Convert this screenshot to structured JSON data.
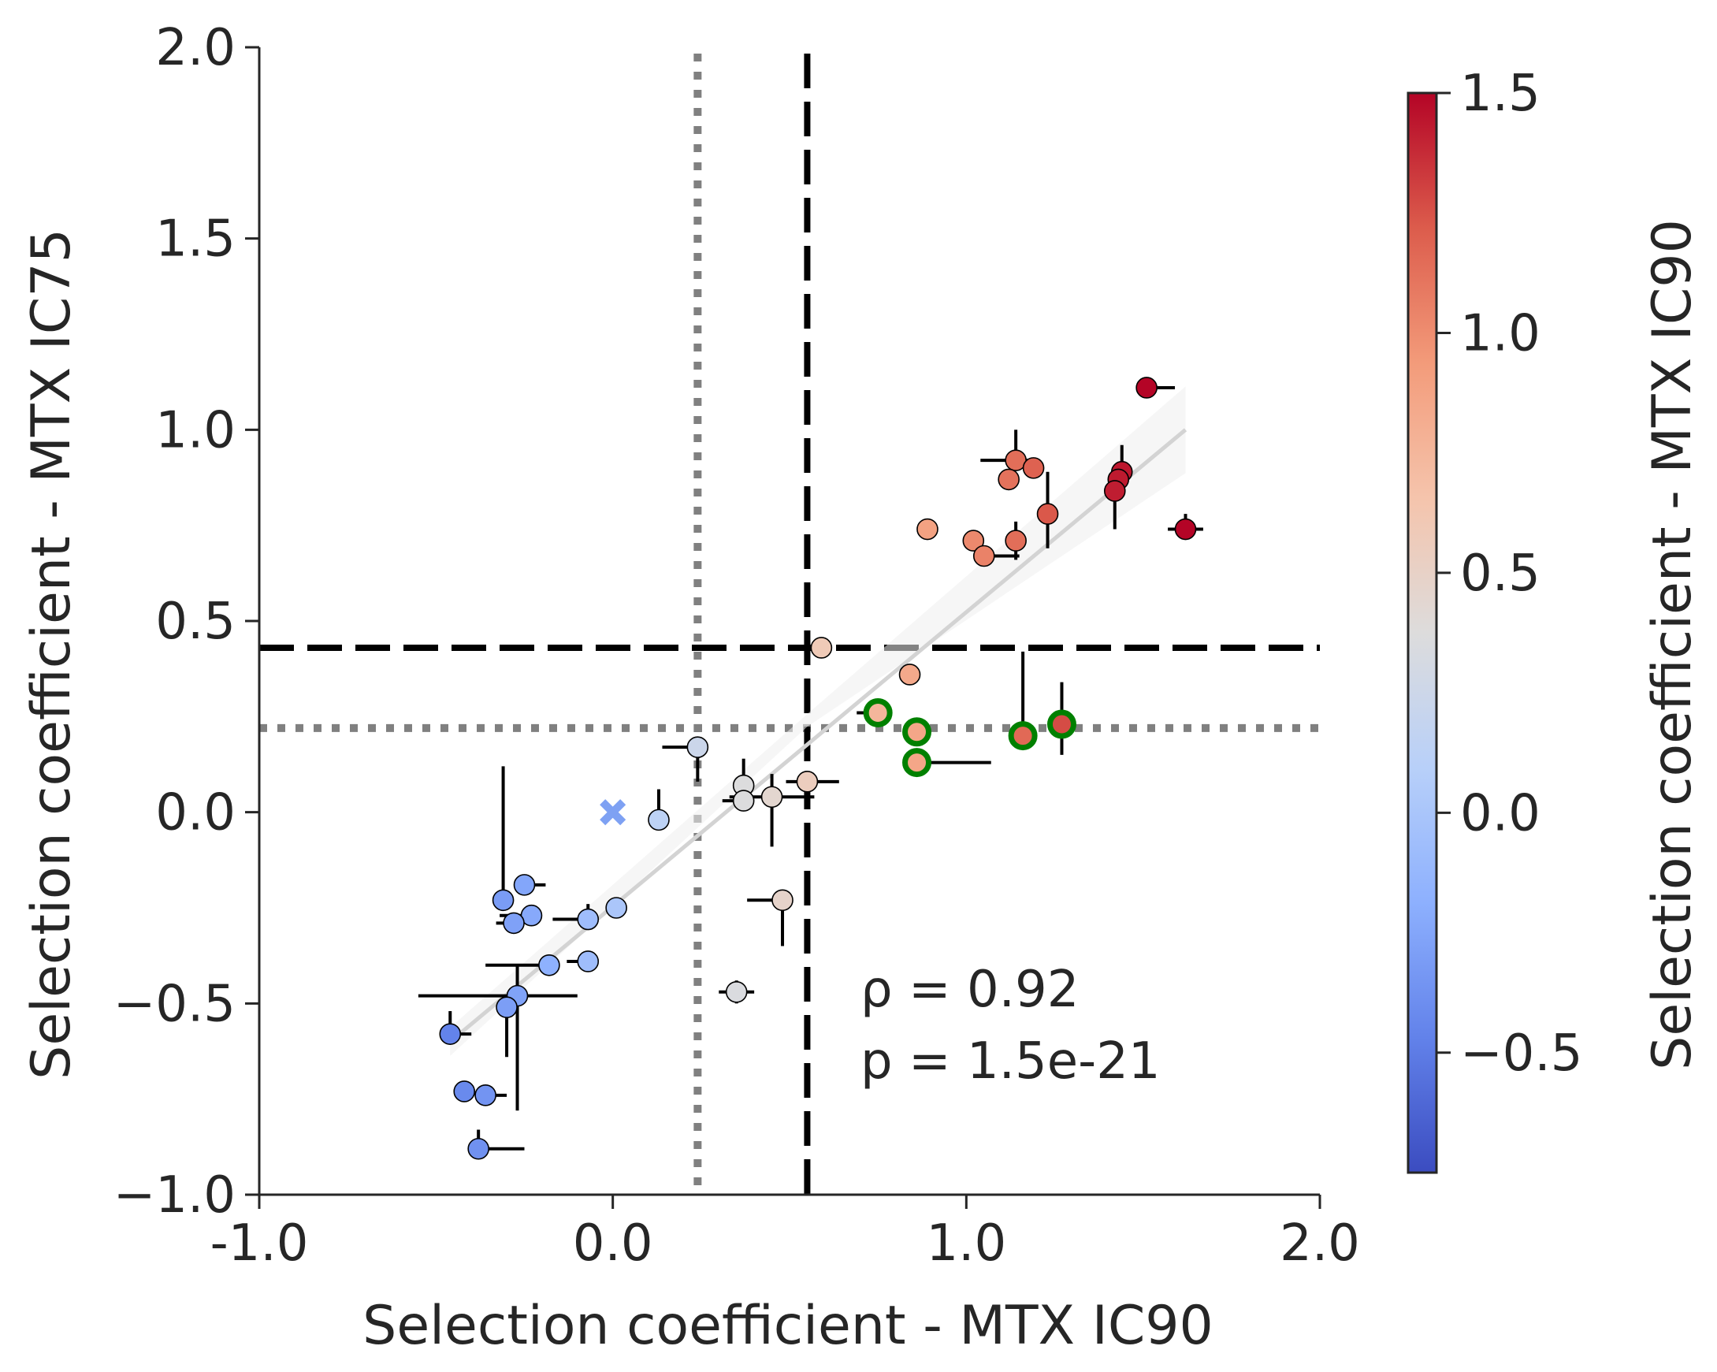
{
  "chart_data": {
    "type": "scatter",
    "xlabel": "Selection coefficient - MTX IC90",
    "ylabel": "Selection coefficient - MTX IC75",
    "xlim": [
      -1.0,
      2.0
    ],
    "ylim": [
      -1.0,
      2.0
    ],
    "x_ticks": [
      "-1.0",
      "0.0",
      "1.0",
      "2.0"
    ],
    "y_ticks": [
      "−1.0",
      "−0.5",
      "0.0",
      "0.5",
      "1.0",
      "1.5",
      "2.0"
    ],
    "colorbar": {
      "label": "Selection coefficient - MTX IC90",
      "range": [
        -0.75,
        1.5
      ],
      "ticks": [
        "−0.5",
        "0.0",
        "0.5",
        "1.0",
        "1.5"
      ],
      "colormap": "coolwarm"
    },
    "reference_lines": {
      "vertical_dashed_x": 0.55,
      "horizontal_dashed_y": 0.43,
      "vertical_dotted_x": 0.24,
      "horizontal_dotted_y": 0.22
    },
    "fit_line": {
      "x0": -0.46,
      "y0": -0.6,
      "x1": 1.62,
      "y1": 1.0,
      "color": "#d3d3d3"
    },
    "annotation": {
      "rho": "ρ = 0.92",
      "p": "p = 1.5e-21"
    },
    "marker_x": {
      "x": 0.0,
      "y": 0.0,
      "color": "#7ea1f3"
    },
    "points": [
      {
        "x": 1.51,
        "y": 1.11,
        "xerr": [
          0.0,
          0.08
        ],
        "yerr": [
          0.0,
          0.0
        ]
      },
      {
        "x": 1.62,
        "y": 0.74,
        "xerr": [
          0.05,
          0.05
        ],
        "yerr": [
          0.0,
          0.04
        ]
      },
      {
        "x": 1.44,
        "y": 0.89,
        "xerr": [
          0.02,
          0.0
        ],
        "yerr": [
          0.0,
          0.07
        ]
      },
      {
        "x": 1.43,
        "y": 0.87,
        "xerr": [
          0.0,
          0.0
        ],
        "yerr": [
          0.0,
          0.0
        ]
      },
      {
        "x": 1.42,
        "y": 0.84,
        "xerr": [
          0.0,
          0.0
        ],
        "yerr": [
          0.1,
          0.0
        ]
      },
      {
        "x": 1.23,
        "y": 0.78,
        "xerr": [
          0.0,
          0.0
        ],
        "yerr": [
          0.09,
          0.11
        ]
      },
      {
        "x": 1.14,
        "y": 0.92,
        "xerr": [
          0.1,
          0.06
        ],
        "yerr": [
          0.0,
          0.08
        ]
      },
      {
        "x": 1.19,
        "y": 0.9,
        "xerr": [
          0.03,
          0.03
        ],
        "yerr": [
          0.0,
          0.0
        ]
      },
      {
        "x": 1.12,
        "y": 0.87,
        "xerr": [
          0.0,
          0.0
        ],
        "yerr": [
          0.0,
          0.0
        ]
      },
      {
        "x": 1.14,
        "y": 0.71,
        "xerr": [
          0.0,
          0.0
        ],
        "yerr": [
          0.05,
          0.05
        ]
      },
      {
        "x": 1.02,
        "y": 0.71,
        "xerr": [
          0.02,
          0.02
        ],
        "yerr": [
          0.0,
          0.0
        ]
      },
      {
        "x": 1.05,
        "y": 0.67,
        "xerr": [
          0.0,
          0.1
        ],
        "yerr": [
          0.0,
          0.0
        ]
      },
      {
        "x": 0.89,
        "y": 0.74,
        "xerr": [
          0.0,
          0.0
        ],
        "yerr": [
          0.0,
          0.0
        ]
      },
      {
        "x": 0.84,
        "y": 0.36,
        "xerr": [
          0.0,
          0.0
        ],
        "yerr": [
          0.0,
          0.0
        ]
      },
      {
        "x": 0.59,
        "y": 0.43,
        "xerr": [
          0.0,
          0.0
        ],
        "yerr": [
          0.0,
          0.0
        ]
      },
      {
        "x": 0.75,
        "y": 0.26,
        "xerr": [
          0.06,
          0.0
        ],
        "yerr": [
          0.0,
          0.0
        ],
        "highlight": true
      },
      {
        "x": 0.86,
        "y": 0.21,
        "xerr": [
          0.0,
          0.0
        ],
        "yerr": [
          0.0,
          0.0
        ],
        "highlight": true
      },
      {
        "x": 0.86,
        "y": 0.13,
        "xerr": [
          0.0,
          0.21
        ],
        "yerr": [
          0.0,
          0.0
        ],
        "highlight": true
      },
      {
        "x": 1.16,
        "y": 0.2,
        "xerr": [
          0.0,
          0.0
        ],
        "yerr": [
          0.0,
          0.22
        ],
        "highlight": true
      },
      {
        "x": 1.27,
        "y": 0.23,
        "xerr": [
          0.0,
          0.0
        ],
        "yerr": [
          0.08,
          0.11
        ],
        "highlight": true
      },
      {
        "x": 0.55,
        "y": 0.08,
        "xerr": [
          0.06,
          0.09
        ],
        "yerr": [
          0.0,
          0.0
        ]
      },
      {
        "x": 0.24,
        "y": 0.17,
        "xerr": [
          0.1,
          0.0
        ],
        "yerr": [
          0.09,
          0.0
        ]
      },
      {
        "x": 0.37,
        "y": 0.07,
        "xerr": [
          0.0,
          0.0
        ],
        "yerr": [
          0.0,
          0.07
        ]
      },
      {
        "x": 0.37,
        "y": 0.03,
        "xerr": [
          0.06,
          0.0
        ],
        "yerr": [
          0.0,
          0.0
        ]
      },
      {
        "x": 0.45,
        "y": 0.04,
        "xerr": [
          0.12,
          0.12
        ],
        "yerr": [
          0.13,
          0.06
        ]
      },
      {
        "x": 0.13,
        "y": -0.02,
        "xerr": [
          0.0,
          0.0
        ],
        "yerr": [
          0.0,
          0.08
        ]
      },
      {
        "x": 0.48,
        "y": -0.23,
        "xerr": [
          0.1,
          0.0
        ],
        "yerr": [
          0.12,
          0.0
        ]
      },
      {
        "x": 0.35,
        "y": -0.47,
        "xerr": [
          0.05,
          0.05
        ],
        "yerr": [
          0.03,
          0.03
        ]
      },
      {
        "x": 0.01,
        "y": -0.25,
        "xerr": [
          0.0,
          0.0
        ],
        "yerr": [
          0.0,
          0.0
        ]
      },
      {
        "x": -0.07,
        "y": -0.28,
        "xerr": [
          0.1,
          0.0
        ],
        "yerr": [
          0.0,
          0.04
        ]
      },
      {
        "x": -0.07,
        "y": -0.39,
        "xerr": [
          0.06,
          0.0
        ],
        "yerr": [
          0.0,
          0.0
        ]
      },
      {
        "x": -0.25,
        "y": -0.19,
        "xerr": [
          0.0,
          0.06
        ],
        "yerr": [
          0.0,
          0.0
        ]
      },
      {
        "x": -0.31,
        "y": -0.23,
        "xerr": [
          0.0,
          0.0
        ],
        "yerr": [
          0.0,
          0.35
        ]
      },
      {
        "x": -0.23,
        "y": -0.27,
        "xerr": [
          0.09,
          0.0
        ],
        "yerr": [
          0.0,
          0.0
        ]
      },
      {
        "x": -0.28,
        "y": -0.29,
        "xerr": [
          0.05,
          0.0
        ],
        "yerr": [
          0.0,
          0.0
        ]
      },
      {
        "x": -0.18,
        "y": -0.4,
        "xerr": [
          0.18,
          0.0
        ],
        "yerr": [
          0.0,
          0.0
        ]
      },
      {
        "x": -0.27,
        "y": -0.48,
        "xerr": [
          0.28,
          0.17
        ],
        "yerr": [
          0.3,
          0.08
        ]
      },
      {
        "x": -0.3,
        "y": -0.51,
        "xerr": [
          0.0,
          0.0
        ],
        "yerr": [
          0.13,
          0.0
        ]
      },
      {
        "x": -0.46,
        "y": -0.58,
        "xerr": [
          0.0,
          0.06
        ],
        "yerr": [
          0.0,
          0.06
        ]
      },
      {
        "x": -0.42,
        "y": -0.73,
        "xerr": [
          0.0,
          0.0
        ],
        "yerr": [
          0.0,
          0.0
        ]
      },
      {
        "x": -0.36,
        "y": -0.74,
        "xerr": [
          0.0,
          0.06
        ],
        "yerr": [
          0.0,
          0.0
        ]
      },
      {
        "x": -0.38,
        "y": -0.88,
        "xerr": [
          0.0,
          0.13
        ],
        "yerr": [
          0.0,
          0.05
        ]
      }
    ]
  }
}
